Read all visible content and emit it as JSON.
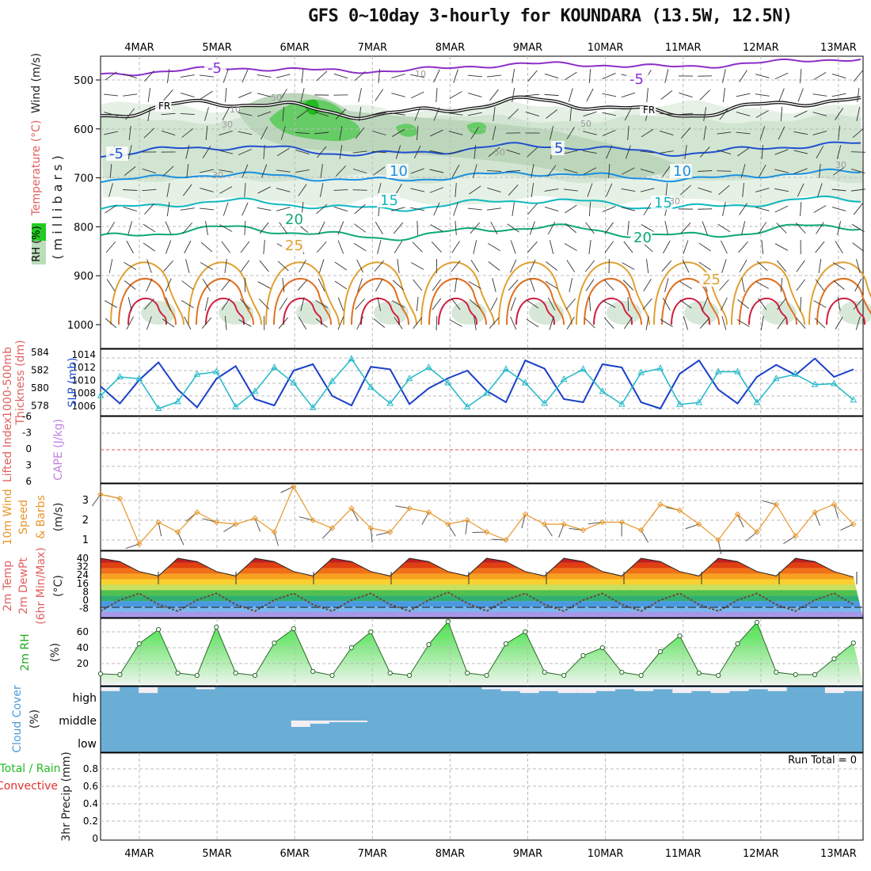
{
  "title": "GFS 0~10day 3-hourly for KOUNDARA (13.5W, 12.5N)",
  "dates": [
    "4MAR",
    "5MAR",
    "6MAR",
    "7MAR",
    "8MAR",
    "9MAR",
    "10MAR",
    "11MAR",
    "12MAR",
    "13MAR"
  ],
  "colors": {
    "frame": "#000000",
    "grid": "#bbbbbb",
    "slp": "#1a3fc8",
    "thickness": "#20b8c8",
    "wind10m": "#e8962a",
    "rh_green": "#22cc22",
    "cloud_blue": "#6aaed6",
    "cloud_white": "#f4eef4",
    "lifted_zero": "#e05050"
  },
  "panels": {
    "upper_air": {
      "ylabels": [
        "Wind (m/s)",
        "Temperature (°C)",
        "RH (%)",
        "( m i l l i b a r s )"
      ],
      "yticks": [
        "500",
        "600",
        "700",
        "800",
        "900",
        "1000"
      ],
      "contour_labels": {
        "temp": [
          "-5",
          "-5",
          "FR",
          "FR",
          "5",
          "-5",
          "10",
          "10",
          "15",
          "15",
          "20",
          "20",
          "25",
          "25"
        ],
        "rh": [
          "10",
          "50",
          "30",
          "10",
          "50",
          "50",
          "30",
          "30",
          "30"
        ]
      }
    },
    "slp_thickness": {
      "ylabel_left": [
        "1000-500mb",
        "Thickness (dm)"
      ],
      "ylabel_right": "SLP (mb)",
      "thickness_ticks": [
        "584",
        "582",
        "580",
        "578"
      ],
      "slp_ticks": [
        "1014",
        "1012",
        "1010",
        "1008",
        "1006"
      ]
    },
    "lifted_cape": {
      "ylabel_left": "Lifted Index",
      "ylabel_right": "CAPE (J/kg)",
      "yticks": [
        "-6",
        "-3",
        "0",
        "3",
        "6"
      ]
    },
    "wind10m": {
      "ylabel": [
        "10m Wind",
        "Speed",
        "& Barbs",
        "(m/s)"
      ],
      "yticks": [
        "3",
        "2",
        "1"
      ]
    },
    "temp2m": {
      "ylabel": [
        "2m Temp",
        "2m DewPt",
        "(6hr Min/Max)",
        "(°C)"
      ],
      "yticks": [
        "40",
        "32",
        "24",
        "16",
        "8",
        "0",
        "-8"
      ]
    },
    "rh2m": {
      "ylabel": [
        "2m RH",
        "(%)"
      ],
      "yticks": [
        "60",
        "40",
        "20"
      ]
    },
    "cloud": {
      "ylabel": [
        "Cloud Cover",
        "(%)"
      ],
      "levels": [
        "high",
        "middle",
        "low"
      ]
    },
    "precip": {
      "ylabel": [
        "Total / Rain",
        "Convective",
        "3hr Precip (mm)"
      ],
      "yticks": [
        "0.8",
        "0.6",
        "0.4",
        "0.2",
        "0"
      ],
      "run_total": "Run Total = 0"
    }
  },
  "chart_data": [
    {
      "type": "line",
      "name": "SLP / 1000-500mb thickness",
      "x_unit": "forecast hour (3-hourly, day 0 to 10)",
      "series": [
        {
          "name": "SLP (mb)",
          "x": [
            0,
            6,
            12,
            18,
            24,
            30,
            36,
            42,
            48,
            54,
            60,
            66,
            72,
            78,
            84,
            90,
            96,
            102,
            108,
            114,
            120,
            126,
            132,
            138,
            144,
            150,
            156,
            162,
            168,
            174,
            180,
            186,
            192,
            198,
            204,
            210,
            216,
            222,
            228,
            234
          ],
          "values": [
            1009.5,
            1006.8,
            1010.5,
            1013.3,
            1009.0,
            1006.2,
            1010.7,
            1012.7,
            1007.5,
            1006.5,
            1012.0,
            1013.0,
            1008.0,
            1006.5,
            1012.6,
            1012.2,
            1006.7,
            1009.2,
            1010.8,
            1012.0,
            1008.8,
            1007.0,
            1013.6,
            1012.3,
            1007.5,
            1007.0,
            1013.0,
            1012.5,
            1007.0,
            1006.0,
            1011.5,
            1013.6,
            1009.0,
            1006.8,
            1011.0,
            1012.9,
            1011.3,
            1013.9,
            1011.0,
            1012.2
          ]
        },
        {
          "name": "1000-500mb Thickness (dm)",
          "x": [
            0,
            6,
            12,
            18,
            24,
            30,
            36,
            42,
            48,
            54,
            60,
            66,
            72,
            78,
            84,
            90,
            96,
            102,
            108,
            114,
            120,
            126,
            132,
            138,
            144,
            150,
            156,
            162,
            168,
            174,
            180,
            186,
            192,
            198,
            204,
            210,
            216,
            222,
            228,
            234
          ],
          "values": [
            579.5,
            581.7,
            581.5,
            578.0,
            578.8,
            582.0,
            582.3,
            578.2,
            580.0,
            582.8,
            581.0,
            578.1,
            581.2,
            583.8,
            580.5,
            578.6,
            581.5,
            582.8,
            581.0,
            578.2,
            579.8,
            582.6,
            581.0,
            578.6,
            581.4,
            582.6,
            580.0,
            578.5,
            582.2,
            582.7,
            578.5,
            578.7,
            582.3,
            582.3,
            578.7,
            581.5,
            582.0,
            580.8,
            580.9,
            579.0
          ]
        }
      ]
    },
    {
      "type": "line",
      "name": "10m wind speed",
      "x": [
        0,
        6,
        12,
        18,
        24,
        30,
        36,
        42,
        48,
        54,
        60,
        66,
        72,
        78,
        84,
        90,
        96,
        102,
        108,
        114,
        120,
        126,
        132,
        138,
        144,
        150,
        156,
        162,
        168,
        174,
        180,
        186,
        192,
        198,
        204,
        210,
        216,
        222,
        228,
        234
      ],
      "series": [
        {
          "name": "10m Wind Speed (m/s)",
          "values": [
            3.3,
            3.1,
            0.8,
            1.9,
            1.4,
            2.4,
            1.9,
            1.8,
            2.1,
            1.4,
            3.7,
            2.0,
            1.6,
            2.6,
            1.6,
            1.4,
            2.6,
            2.4,
            1.8,
            2.0,
            1.4,
            1.0,
            2.3,
            1.8,
            1.8,
            1.5,
            1.9,
            1.9,
            1.5,
            2.8,
            2.5,
            1.8,
            1.0,
            2.3,
            1.4,
            2.8,
            1.2,
            2.4,
            2.8,
            1.8
          ]
        }
      ]
    },
    {
      "type": "area",
      "name": "2m temperature",
      "x": [
        0,
        6,
        12,
        18,
        24,
        30,
        36,
        42,
        48,
        54,
        60,
        66,
        72,
        78,
        84,
        90,
        96,
        102,
        108,
        114,
        120,
        126,
        132,
        138,
        144,
        150,
        156,
        162,
        168,
        174,
        180,
        186,
        192,
        198,
        204,
        210,
        216,
        222,
        228,
        234
      ],
      "series": [
        {
          "name": "2m Temp (°C)",
          "values": [
            40,
            37,
            28,
            24,
            40,
            37,
            28,
            24,
            40,
            37,
            28,
            24,
            40,
            37,
            28,
            24,
            40,
            37,
            28,
            24,
            40,
            37,
            28,
            24,
            40,
            37,
            28,
            24,
            40,
            37,
            28,
            24,
            40,
            37,
            28,
            24,
            40,
            37,
            28,
            23
          ]
        },
        {
          "name": "2m DewPt (°C)",
          "values": [
            -2,
            8,
            14,
            4,
            -2,
            8,
            14,
            4,
            -2,
            8,
            14,
            4,
            -2,
            8,
            14,
            4,
            -2,
            8,
            15,
            5,
            -2,
            8,
            14,
            4,
            -2,
            8,
            14,
            4,
            -2,
            8,
            14,
            4,
            -2,
            8,
            14,
            4,
            -2,
            8,
            14,
            4
          ]
        }
      ],
      "ylim": [
        -8,
        44
      ]
    },
    {
      "type": "area",
      "name": "2m relative humidity",
      "x": [
        0,
        6,
        12,
        18,
        24,
        30,
        36,
        42,
        48,
        54,
        60,
        66,
        72,
        78,
        84,
        90,
        96,
        102,
        108,
        114,
        120,
        126,
        132,
        138,
        144,
        150,
        156,
        162,
        168,
        174,
        180,
        186,
        192,
        198,
        204,
        210,
        216,
        222,
        228,
        234
      ],
      "series": [
        {
          "name": "2m RH (%)",
          "values": [
            7,
            6,
            45,
            63,
            8,
            5,
            66,
            8,
            5,
            46,
            64,
            10,
            5,
            40,
            60,
            8,
            5,
            44,
            73,
            8,
            5,
            45,
            60,
            9,
            5,
            30,
            40,
            9,
            5,
            35,
            55,
            8,
            5,
            45,
            72,
            9,
            6,
            6,
            26,
            46
          ]
        }
      ],
      "ylim": [
        0,
        75
      ]
    },
    {
      "type": "bar",
      "name": "cloud cover",
      "series": [
        {
          "name": "high",
          "values": [
            20,
            0,
            30,
            0,
            0,
            10,
            0,
            0,
            0,
            0,
            0,
            0,
            0,
            0,
            0,
            0,
            0,
            0,
            0,
            0,
            10,
            20,
            30,
            20,
            30,
            30,
            20,
            10,
            20,
            10,
            30,
            20,
            30,
            20,
            10,
            20,
            0,
            0,
            30,
            20
          ]
        },
        {
          "name": "middle",
          "values": [
            0,
            0,
            0,
            0,
            0,
            0,
            0,
            0,
            0,
            0,
            20,
            10,
            5,
            5,
            0,
            0,
            0,
            0,
            0,
            0,
            0,
            0,
            0,
            0,
            0,
            0,
            0,
            0,
            0,
            0,
            0,
            0,
            0,
            0,
            0,
            0,
            0,
            0,
            0,
            0
          ]
        }
      ],
      "ylim": [
        0,
        100
      ]
    },
    {
      "type": "bar",
      "name": "3hr precipitation",
      "series": [
        {
          "name": "Total / Rain",
          "values": []
        }
      ],
      "ylim": [
        0,
        0.9
      ]
    }
  ]
}
